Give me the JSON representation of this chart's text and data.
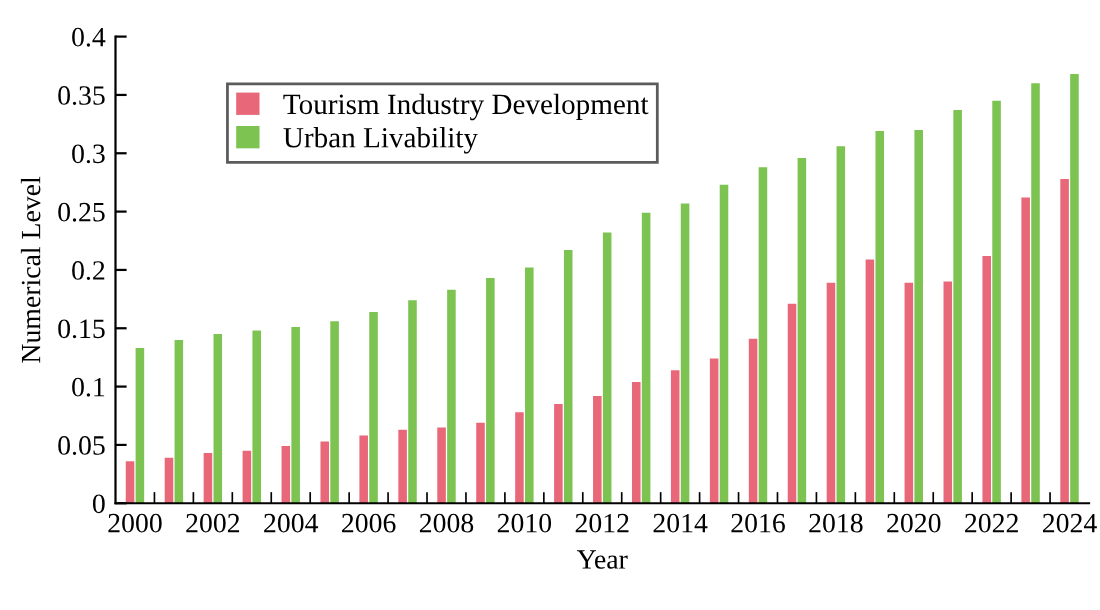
{
  "chart_data": {
    "type": "bar",
    "xlabel": "Year",
    "ylabel": "Numerical Level",
    "categories": [
      "2000",
      null,
      "2002",
      null,
      "2004",
      null,
      "2006",
      null,
      "2008",
      null,
      "2010",
      null,
      "2012",
      null,
      "2014",
      null,
      "2016",
      null,
      "2018",
      null,
      "2020",
      null,
      "2022",
      null,
      "2024"
    ],
    "series": [
      {
        "name": "Tourism Industry Development",
        "color": "#e8687a",
        "values": [
          0.036,
          0.039,
          0.043,
          0.045,
          0.049,
          0.053,
          0.058,
          0.063,
          0.065,
          0.069,
          0.078,
          0.085,
          0.092,
          0.104,
          0.114,
          0.124,
          0.141,
          0.171,
          0.189,
          0.209,
          0.189,
          0.19,
          0.212,
          0.262,
          0.278
        ]
      },
      {
        "name": "Urban Livability",
        "color": "#7dc352",
        "values": [
          0.133,
          0.14,
          0.145,
          0.148,
          0.151,
          0.156,
          0.164,
          0.174,
          0.183,
          0.193,
          0.202,
          0.217,
          0.232,
          0.249,
          0.257,
          0.273,
          0.288,
          0.296,
          0.306,
          0.319,
          0.32,
          0.337,
          0.345,
          0.36,
          0.368
        ]
      }
    ],
    "ylim": [
      0,
      0.4
    ],
    "yticks": [
      0,
      0.05,
      0.1,
      0.15,
      0.2,
      0.25,
      0.3,
      0.35,
      0.4
    ],
    "grid": false,
    "legend": "top left"
  }
}
